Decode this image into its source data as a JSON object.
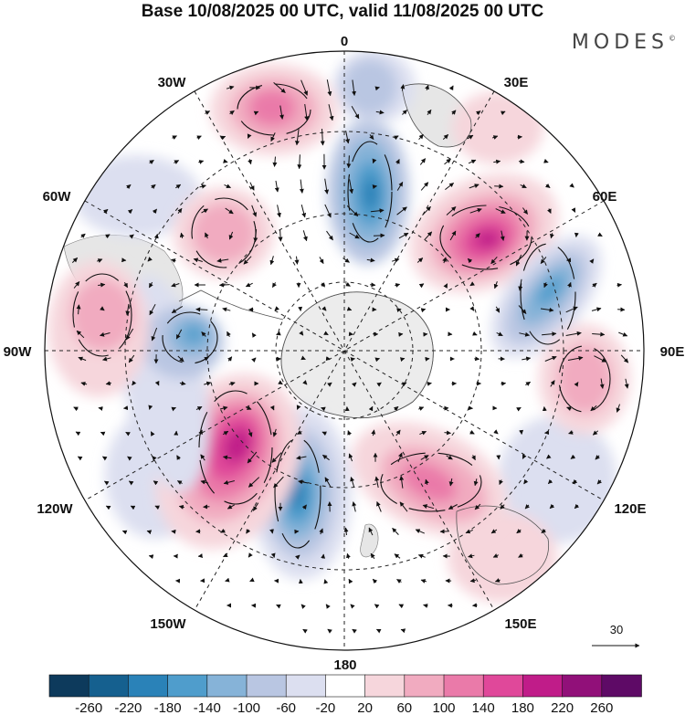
{
  "title": "Base 10/08/2025 00 UTC, valid 11/08/2025 00 UTC",
  "brand": "MODES",
  "brand_mark": "©",
  "meridian_labels": {
    "lon_0": "0",
    "lon_30e": "30E",
    "lon_60e": "60E",
    "lon_90e": "90E",
    "lon_120e": "120E",
    "lon_150e": "150E",
    "lon_180": "180",
    "lon_150w": "150W",
    "lon_120w": "120W",
    "lon_90w": "90W",
    "lon_60w": "60W",
    "lon_30w": "30W"
  },
  "vector_reference": {
    "label": "30"
  },
  "colorbar": {
    "ticks": [
      "-260",
      "-220",
      "-180",
      "-140",
      "-100",
      "-60",
      "-20",
      "20",
      "60",
      "100",
      "140",
      "180",
      "220",
      "260"
    ],
    "colors": [
      "#0d3a5c",
      "#15608f",
      "#2a82b8",
      "#4f9dcc",
      "#86b3d8",
      "#b9c6e2",
      "#dcdff0",
      "#ffffff",
      "#f6d6dc",
      "#f1abc0",
      "#ea7aa9",
      "#e0489a",
      "#c01c89",
      "#911079",
      "#5e0a66"
    ]
  },
  "map_features": {
    "anomaly_centers": [
      {
        "name": "positive-center-south-atlantic",
        "sign": "positive",
        "value": 120
      },
      {
        "name": "negative-center-near-0",
        "sign": "negative",
        "value": -140
      },
      {
        "name": "positive-center-45e",
        "sign": "positive",
        "value": 220
      },
      {
        "name": "negative-center-70e",
        "sign": "negative",
        "value": -140
      },
      {
        "name": "positive-center-90e",
        "sign": "positive",
        "value": 80
      },
      {
        "name": "positive-center-140e",
        "sign": "positive",
        "value": 140
      },
      {
        "name": "negative-center-170w",
        "sign": "negative",
        "value": -220
      },
      {
        "name": "positive-center-140w",
        "sign": "positive",
        "value": 220
      },
      {
        "name": "negative-center-90w",
        "sign": "negative",
        "value": -140
      },
      {
        "name": "positive-center-80w",
        "sign": "positive",
        "value": 80
      },
      {
        "name": "positive-center-60w",
        "sign": "positive",
        "value": 100
      },
      {
        "name": "positive-center-30w",
        "sign": "positive",
        "value": 140
      }
    ]
  }
}
